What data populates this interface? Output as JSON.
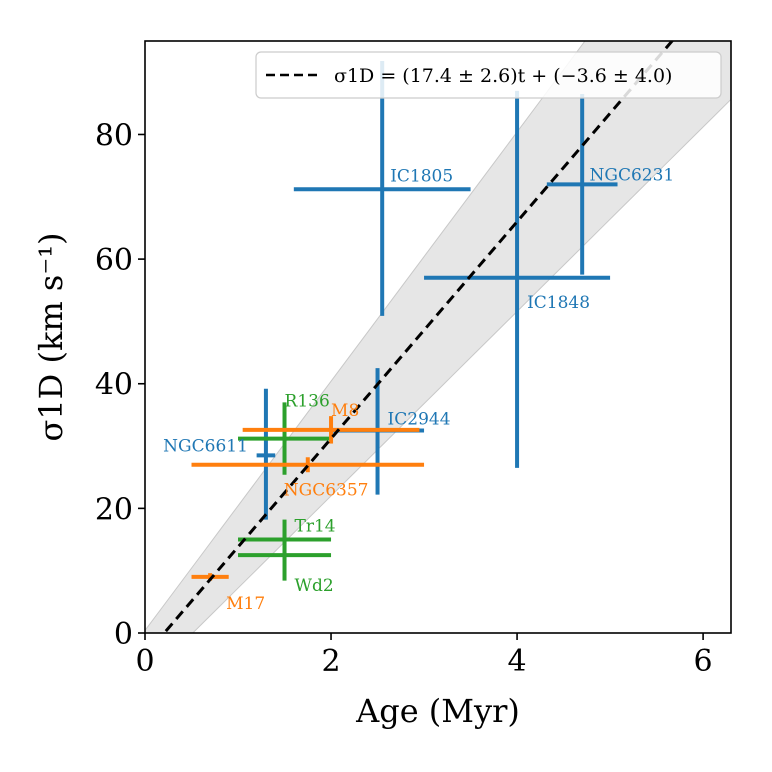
{
  "chart_data": {
    "type": "scatter",
    "xlabel": "Age (Myr)",
    "ylabel": "σ1D (km s⁻¹)",
    "xlim": [
      0,
      6.3
    ],
    "ylim": [
      0,
      95
    ],
    "xticks": [
      0,
      2,
      4,
      6
    ],
    "yticks": [
      0,
      20,
      40,
      60,
      80
    ],
    "xtick_labels": [
      "0",
      "2",
      "4",
      "6"
    ],
    "ytick_labels": [
      "0",
      "20",
      "40",
      "60",
      "80"
    ],
    "grid": false,
    "legend": {
      "position": "top-right",
      "entries": [
        "σ1D = (17.4 ± 2.6)t + (−3.6 ± 4.0)"
      ]
    },
    "fit": {
      "slope": 17.4,
      "slope_err": 2.6,
      "intercept": -3.6,
      "intercept_err": 4.0,
      "style": "dashed",
      "band": true
    },
    "colors": {
      "blue": "#1f77b4",
      "orange": "#ff7f0e",
      "green": "#2ca02c",
      "band": "#e6e6e6"
    },
    "points": [
      {
        "name": "IC1805",
        "color": "blue",
        "x": 2.55,
        "xerr": [
          0.95,
          0.95
        ],
        "y": 71.2,
        "yerr": [
          20.3,
          20.6
        ],
        "label_pos": "upper-right"
      },
      {
        "name": "NGC6231",
        "color": "blue",
        "x": 4.7,
        "xerr": [
          0.38,
          0.38
        ],
        "y": 72,
        "yerr": [
          14.5,
          14.5
        ],
        "label_pos": "upper-right"
      },
      {
        "name": "IC1848",
        "color": "blue",
        "x": 4.0,
        "xerr": [
          1.0,
          1.0
        ],
        "y": 57,
        "yerr": [
          30.5,
          30.0
        ],
        "label_pos": "lower-right"
      },
      {
        "name": "IC2944",
        "color": "blue",
        "x": 2.5,
        "xerr": [
          0.5,
          0.5
        ],
        "y": 32.5,
        "yerr": [
          10.3,
          10.0
        ],
        "label_pos": "upper-right"
      },
      {
        "name": "NGC6611",
        "color": "blue",
        "x": 1.3,
        "xerr": [
          0.1,
          0.1
        ],
        "y": 28.5,
        "yerr": [
          10.3,
          10.7
        ],
        "label_pos": "left"
      },
      {
        "name": "R136",
        "color": "green",
        "x": 1.5,
        "xerr": [
          0.5,
          0.5
        ],
        "y": 31.2,
        "yerr": [
          5.8,
          5.8
        ],
        "label_pos": "upper-right"
      },
      {
        "name": "Tr14",
        "color": "green",
        "x": 1.5,
        "xerr": [
          0.5,
          0.5
        ],
        "y": 15,
        "yerr": [
          3.2,
          3.2
        ],
        "label_pos": "upper-right"
      },
      {
        "name": "Wd2",
        "color": "green",
        "x": 1.5,
        "xerr": [
          0.5,
          0.5
        ],
        "y": 12.5,
        "yerr": [
          4.1,
          4.1
        ],
        "label_pos": "lower-right"
      },
      {
        "name": "M8",
        "color": "orange",
        "x": 2.0,
        "xerr": [
          0.95,
          0.95
        ],
        "y": 32.6,
        "yerr": [
          2.2,
          2.2
        ],
        "label_pos": "upper-right"
      },
      {
        "name": "NGC6357",
        "color": "orange",
        "x": 1.75,
        "xerr": [
          1.25,
          1.25
        ],
        "y": 27,
        "yerr": [
          1.2,
          1.2
        ],
        "label_pos": "lower-right"
      },
      {
        "name": "M17",
        "color": "orange",
        "x": 0.7,
        "xerr": [
          0.2,
          0.2
        ],
        "y": 9,
        "yerr": [
          0.6,
          0.6
        ],
        "label_pos": "lower-right"
      }
    ]
  }
}
